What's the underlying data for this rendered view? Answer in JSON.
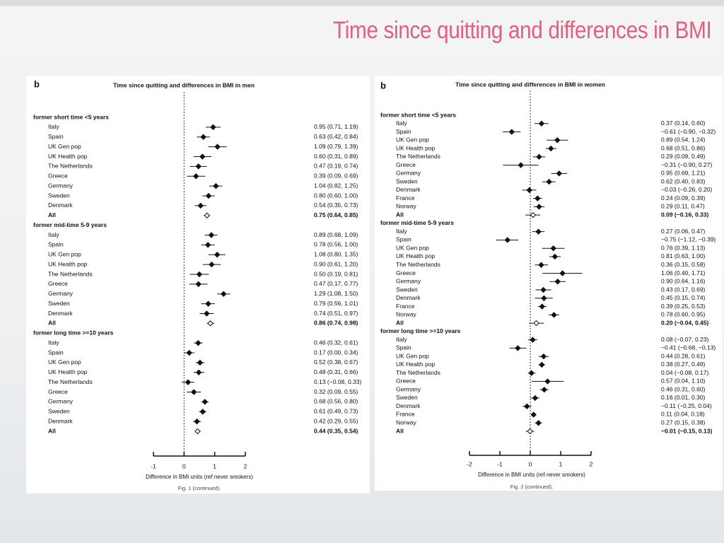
{
  "title": "Time since quitting and differences in BMI",
  "chart_data": [
    {
      "type": "forest",
      "panel": "b",
      "title": "Time since quitting and differences in BMI in men",
      "x_label": "Difference in BMI units (ref never smokers)",
      "caption": "Fig. 1 (continued).",
      "xlim": [
        -1,
        2
      ],
      "xticks": [
        -1,
        0,
        1,
        2
      ],
      "groups": [
        {
          "name": "former short time <5 years",
          "categories": [
            "Italy",
            "Spain",
            "UK Gen pop",
            "UK Health pop",
            "The Netherlands",
            "Greece",
            "Germany",
            "Sweden",
            "Denmark",
            "All"
          ],
          "values": [
            0.95,
            0.63,
            1.09,
            0.6,
            0.47,
            0.39,
            1.04,
            0.8,
            0.54,
            0.75
          ],
          "lower": [
            0.71,
            0.42,
            0.79,
            0.31,
            0.19,
            0.09,
            0.82,
            0.6,
            0.35,
            0.64
          ],
          "upper": [
            1.19,
            0.84,
            1.39,
            0.89,
            0.74,
            0.69,
            1.25,
            1.0,
            0.73,
            0.85
          ],
          "value_labels": [
            "0.95 (0.71, 1.19)",
            "0.63 (0.42, 0.84)",
            "1.09 (0.79, 1.39)",
            "0.60 (0.31, 0.89)",
            "0.47 (0.19, 0.74)",
            "0.39 (0.09, 0.69)",
            "1.04 (0.82, 1.25)",
            "0.80 (0.60, 1.00)",
            "0.54 (0.35, 0.73)",
            "0.75 (0.64, 0.85)"
          ]
        },
        {
          "name": "former mid-time 5-9 years",
          "categories": [
            "Italy",
            "Spain",
            "UK Gen pop",
            "UK Health pop",
            "The Netherlands",
            "Greece",
            "Germany",
            "Sweden",
            "Denmark",
            "All"
          ],
          "values": [
            0.89,
            0.78,
            1.08,
            0.9,
            0.5,
            0.47,
            1.29,
            0.79,
            0.74,
            0.86
          ],
          "lower": [
            0.68,
            0.56,
            0.8,
            0.61,
            0.19,
            0.17,
            1.08,
            0.56,
            0.51,
            0.74
          ],
          "upper": [
            1.09,
            1.0,
            1.35,
            1.2,
            0.81,
            0.77,
            1.5,
            1.01,
            0.97,
            0.98
          ],
          "value_labels": [
            "0.89 (0.68, 1.09)",
            "0.78 (0.56, 1.00)",
            "1.08 (0.80, 1.35)",
            "0.90 (0.61, 1.20)",
            "0.50 (0.19, 0.81)",
            "0.47 (0.17, 0.77)",
            "1.29 (1.08, 1.50)",
            "0.79 (0.56, 1.01)",
            "0.74 (0.51, 0.97)",
            "0.86 (0.74, 0.98)"
          ]
        },
        {
          "name": "former long time >=10 years",
          "categories": [
            "Italy",
            "Spain",
            "UK Gen pop",
            "UK Health pop",
            "The Netherlands",
            "Greece",
            "Germany",
            "Sweden",
            "Denmark",
            "All"
          ],
          "values": [
            0.46,
            0.17,
            0.52,
            0.48,
            0.13,
            0.32,
            0.68,
            0.61,
            0.42,
            0.44
          ],
          "lower": [
            0.32,
            0.0,
            0.38,
            0.31,
            -0.08,
            0.09,
            0.56,
            0.49,
            0.29,
            0.35
          ],
          "upper": [
            0.61,
            0.34,
            0.67,
            0.66,
            0.33,
            0.55,
            0.8,
            0.73,
            0.55,
            0.54
          ],
          "value_labels": [
            "0.46 (0.32, 0.61)",
            "0.17 (0.00, 0.34)",
            "0.52 (0.38, 0.67)",
            "0.48 (0.31, 0.66)",
            "0.13 (−0.08, 0.33)",
            "0.32 (0.09, 0.55)",
            "0.68 (0.56, 0.80)",
            "0.61 (0.49, 0.73)",
            "0.42 (0.29, 0.55)",
            "0.44 (0.35, 0.54)"
          ]
        }
      ]
    },
    {
      "type": "forest",
      "panel": "b",
      "title": "Time since quitting and differences in BMI in women",
      "x_label": "Difference in BMI units (ref never smokers)",
      "caption": "Fig. 2 (continued).",
      "xlim": [
        -2,
        2
      ],
      "xticks": [
        -2,
        -1,
        0,
        1,
        2
      ],
      "groups": [
        {
          "name": "former short time <5 years",
          "categories": [
            "Italy",
            "Spain",
            "UK Gen pop",
            "UK Health pop",
            "The Netherlands",
            "Greece",
            "Germany",
            "Sweden",
            "Denmark",
            "France",
            "Norway",
            "All"
          ],
          "values": [
            0.37,
            -0.61,
            0.89,
            0.68,
            0.29,
            -0.31,
            0.95,
            0.62,
            -0.03,
            0.24,
            0.29,
            0.09
          ],
          "lower": [
            0.14,
            -0.9,
            0.54,
            0.51,
            0.09,
            -0.9,
            0.69,
            0.4,
            -0.26,
            0.09,
            0.11,
            -0.16
          ],
          "upper": [
            0.6,
            -0.32,
            1.24,
            0.86,
            0.49,
            0.27,
            1.21,
            0.83,
            0.2,
            0.39,
            0.47,
            0.33
          ],
          "value_labels": [
            "0.37 (0.14, 0.60)",
            "−0.61 (−0.90, −0.32)",
            "0.89 (0.54, 1.24)",
            "0.68 (0.51, 0.86)",
            "0.29 (0.09, 0.49)",
            "−0.31 (−0.90, 0.27)",
            "0.95 (0.69, 1.21)",
            "0.62 (0.40, 0.83)",
            "−0.03 (−0.26, 0.20)",
            "0.24 (0.09, 0.39)",
            "0.29 (0.11, 0.47)",
            "0.09 (−0.16, 0.33)"
          ]
        },
        {
          "name": "former mid-time 5-9 years",
          "categories": [
            "Italy",
            "Spain",
            "UK Gen pop",
            "UK Health pop",
            "The Netherlands",
            "Greece",
            "Germany",
            "Sweden",
            "Denmark",
            "France",
            "Norway",
            "All"
          ],
          "values": [
            0.27,
            -0.75,
            0.76,
            0.81,
            0.36,
            1.06,
            0.9,
            0.43,
            0.45,
            0.39,
            0.78,
            0.2
          ],
          "lower": [
            0.06,
            -1.12,
            0.39,
            0.63,
            0.15,
            0.4,
            0.64,
            0.17,
            0.15,
            0.25,
            0.6,
            -0.04
          ],
          "upper": [
            0.47,
            -0.39,
            1.13,
            1.0,
            0.58,
            1.71,
            1.16,
            0.69,
            0.74,
            0.53,
            0.95,
            0.45
          ],
          "value_labels": [
            "0.27 (0.06, 0.47)",
            "−0.75 (−1.12, −0.39)",
            "0.76 (0.39, 1.13)",
            "0.81 (0.63, 1.00)",
            "0.36 (0.15, 0.58)",
            "1.06 (0.40, 1.71)",
            "0.90 (0.64, 1.16)",
            "0.43 (0.17, 0.69)",
            "0.45 (0.15, 0.74)",
            "0.39 (0.25, 0.53)",
            "0.78 (0.60, 0.95)",
            "0.20 (−0.04, 0.45)"
          ]
        },
        {
          "name": "former long time >=10 years",
          "categories": [
            "Italy",
            "Spain",
            "UK Gen pop",
            "UK Health pop",
            "The Netherlands",
            "Greece",
            "Germany",
            "Sweden",
            "Denmark",
            "France",
            "Norway",
            "All"
          ],
          "values": [
            0.08,
            -0.41,
            0.44,
            0.38,
            0.04,
            0.57,
            0.46,
            0.16,
            -0.11,
            0.11,
            0.27,
            -0.01
          ],
          "lower": [
            -0.07,
            -0.68,
            0.28,
            0.27,
            -0.08,
            0.04,
            0.31,
            0.01,
            -0.25,
            0.04,
            0.15,
            -0.15
          ],
          "upper": [
            0.23,
            -0.13,
            0.61,
            0.49,
            0.17,
            1.1,
            0.6,
            0.3,
            0.04,
            0.18,
            0.38,
            0.13
          ],
          "value_labels": [
            "0.08 (−0.07, 0.23)",
            "−0.41 (−0.68, −0.13)",
            "0.44 (0.28, 0.61)",
            "0.38 (0.27, 0.49)",
            "0.04 (−0.08, 0.17)",
            "0.57 (0.04, 1.10)",
            "0.46 (0.31, 0.60)",
            "0.16 (0.01, 0.30)",
            "−0.11 (−0.25, 0.04)",
            "0.11 (0.04, 0.18)",
            "0.27 (0.15, 0.38)",
            "−0.01 (−0.15, 0.13)"
          ]
        }
      ]
    }
  ]
}
